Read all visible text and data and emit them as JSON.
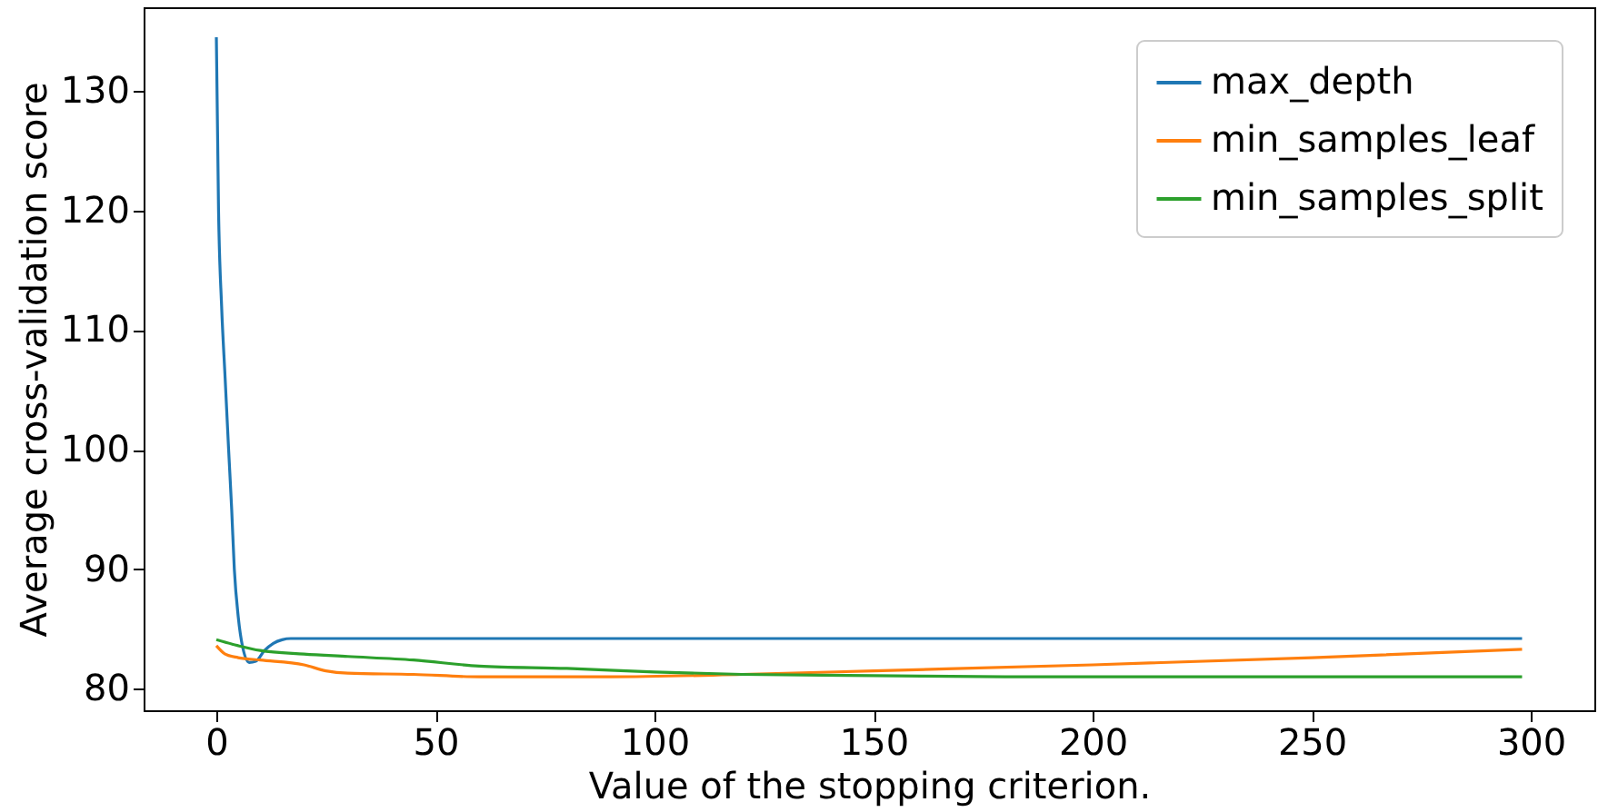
{
  "chart_data": {
    "type": "line",
    "xlabel": "Value of the stopping criterion.",
    "ylabel": "Average cross-validation score",
    "xlim": [
      -16.6,
      314.5
    ],
    "ylim": [
      78.2,
      137
    ],
    "xticks": [
      0,
      50,
      100,
      150,
      200,
      250,
      300
    ],
    "yticks": [
      80,
      90,
      100,
      110,
      120,
      130
    ],
    "grid": false,
    "legend": "top right",
    "series": [
      {
        "name": "max_depth",
        "color": "#1f77b4",
        "x": [
          0,
          0.5,
          1.2,
          2,
          2.8,
          3.5,
          4.1,
          5,
          6,
          7.5,
          9,
          11,
          13,
          15,
          17,
          20,
          50,
          100,
          150,
          200,
          250,
          298
        ],
        "values": [
          134.5,
          120,
          112,
          106,
          100,
          95,
          90,
          86,
          83.5,
          82.2,
          82.3,
          83.2,
          83.8,
          84.1,
          84.2,
          84.2,
          84.2,
          84.2,
          84.2,
          84.2,
          84.2,
          84.2
        ]
      },
      {
        "name": "min_samples_leaf",
        "color": "#ff7f0e",
        "x": [
          0,
          2,
          5,
          10,
          20,
          25,
          30,
          45,
          60,
          90,
          120,
          150,
          200,
          250,
          298
        ],
        "values": [
          83.6,
          82.9,
          82.6,
          82.4,
          82,
          81.5,
          81.3,
          81.2,
          81,
          81,
          81.2,
          81.5,
          82,
          82.6,
          83.3
        ]
      },
      {
        "name": "min_samples_split",
        "color": "#2ca02c",
        "x": [
          0,
          5,
          10,
          20,
          30,
          45,
          60,
          80,
          100,
          120,
          150,
          180,
          250,
          298
        ],
        "values": [
          84.1,
          83.6,
          83.2,
          82.9,
          82.7,
          82.4,
          81.9,
          81.7,
          81.4,
          81.2,
          81.1,
          81,
          81,
          81
        ]
      }
    ]
  }
}
